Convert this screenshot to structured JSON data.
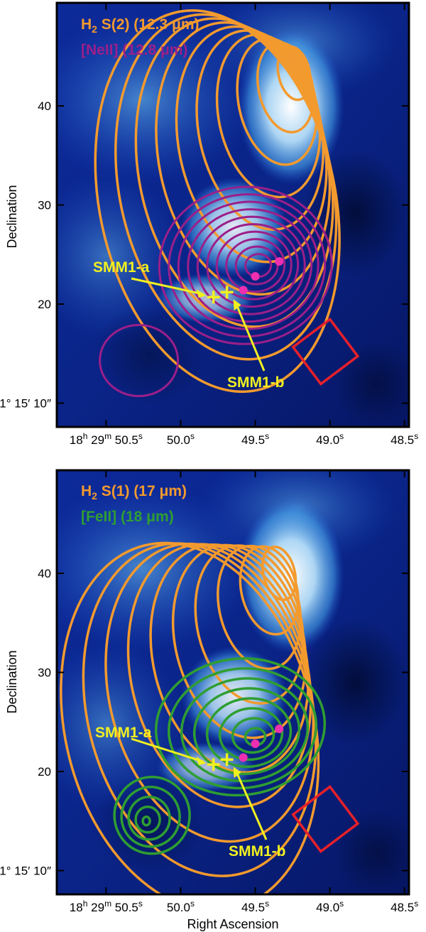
{
  "chart_data": [
    {
      "type": "contour",
      "ylabel": "Declination",
      "xlabel": "",
      "x_ticks": [
        "18h 29m 50.5s",
        "50.0s",
        "49.5s",
        "49.0s",
        "48.5s"
      ],
      "x_tick_values": [
        50.5,
        50.0,
        49.5,
        49.0,
        48.5
      ],
      "y_ticks": [
        "01° 15′ 10″",
        "20",
        "30",
        "40"
      ],
      "y_tick_values": [
        10,
        20,
        30,
        40
      ],
      "xlim": [
        50.83,
        48.47
      ],
      "ylim": [
        7.6,
        50.4
      ],
      "legend": [
        {
          "label": "H2 S(2) (12.3 μm)",
          "color": "#f39a2e"
        },
        {
          "label": "[NeII] (12.8 μm)",
          "color": "#9b1f8a"
        }
      ],
      "annotations": [
        {
          "label": "SMM1-a",
          "color": "#f0f020"
        },
        {
          "label": "SMM1-b",
          "color": "#f0f020"
        }
      ],
      "series": [
        {
          "name": "H2 S(2) (12.3 μm)",
          "color": "#f39a2e",
          "peak": [
            49.24,
            43.3
          ],
          "levels": 10
        },
        {
          "name": "[NeII] (12.8 μm)",
          "color": "#9b1f8a",
          "peak": [
            49.48,
            23.9
          ],
          "levels": 10
        },
        {
          "name": "[NeII] (12.8 μm) secondary",
          "color": "#9b1f8a",
          "peak": [
            50.28,
            14.3
          ],
          "levels": 1
        }
      ],
      "sources": [
        {
          "type": "cross",
          "ra": 49.78,
          "dec": 20.7
        },
        {
          "type": "cross",
          "ra": 49.69,
          "dec": 21.2
        },
        {
          "type": "dot",
          "ra": 49.58,
          "dec": 21.4
        },
        {
          "type": "dot",
          "ra": 49.5,
          "dec": 22.8
        },
        {
          "type": "dot",
          "ra": 49.34,
          "dec": 24.3
        }
      ],
      "box": {
        "ra": 49.03,
        "dec": 15.2
      }
    },
    {
      "type": "contour",
      "ylabel": "Declination",
      "xlabel": "Right Ascension",
      "x_ticks": [
        "18h 29m 50.5s",
        "50.0s",
        "49.5s",
        "49.0s",
        "48.5s"
      ],
      "x_tick_values": [
        50.5,
        50.0,
        49.5,
        49.0,
        48.5
      ],
      "y_ticks": [
        "01° 15′ 10″",
        "20",
        "30",
        "40"
      ],
      "y_tick_values": [
        10,
        20,
        30,
        40
      ],
      "xlim": [
        50.83,
        48.47
      ],
      "ylim": [
        7.6,
        50.4
      ],
      "legend": [
        {
          "label": "H2 S(1) (17 μm)",
          "color": "#f39a2e"
        },
        {
          "label": "[FeII] (18 μm)",
          "color": "#2f9e32"
        }
      ],
      "annotations": [
        {
          "label": "SMM1-a",
          "color": "#f0f020"
        },
        {
          "label": "SMM1-b",
          "color": "#f0f020"
        }
      ],
      "series": [
        {
          "name": "H2 S(1) (17 μm)",
          "color": "#f39a2e",
          "peak": [
            49.34,
            40.0
          ],
          "levels": 10
        },
        {
          "name": "[FeII] (18 μm)",
          "color": "#2f9e32",
          "peak": [
            49.5,
            23.5
          ],
          "levels": 8
        },
        {
          "name": "[FeII] (18 μm) secondary",
          "color": "#2f9e32",
          "peak": [
            50.23,
            15.0
          ],
          "levels": 5
        }
      ],
      "sources": [
        {
          "type": "cross",
          "ra": 49.78,
          "dec": 20.7
        },
        {
          "type": "cross",
          "ra": 49.69,
          "dec": 21.2
        },
        {
          "type": "dot",
          "ra": 49.58,
          "dec": 21.4
        },
        {
          "type": "dot",
          "ra": 49.5,
          "dec": 22.8
        },
        {
          "type": "dot",
          "ra": 49.34,
          "dec": 24.3
        }
      ],
      "box": {
        "ra": 49.03,
        "dec": 15.2
      }
    }
  ]
}
